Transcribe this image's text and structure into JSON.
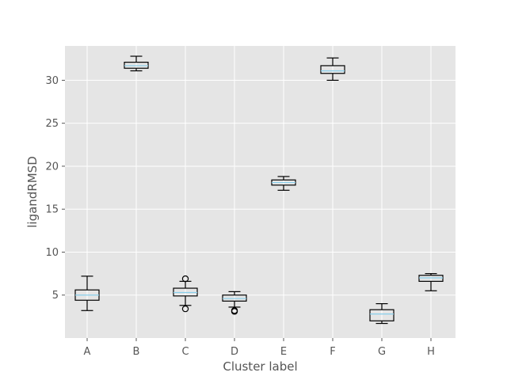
{
  "chart_data": {
    "type": "box",
    "title": "",
    "xlabel": "Cluster label",
    "ylabel": "ligandRMSD",
    "categories": [
      "A",
      "B",
      "C",
      "D",
      "E",
      "F",
      "G",
      "H"
    ],
    "ylim": [
      0,
      34
    ],
    "yticks": [
      5,
      10,
      15,
      20,
      25,
      30
    ],
    "ytick_labels": [
      "5",
      "10",
      "15",
      "20",
      "25",
      "30"
    ],
    "grid": true,
    "colors": {
      "plot_background": "#e5e5e5",
      "grid": "#ffffff",
      "box_edge": "#000000",
      "median": "#87ceeb"
    },
    "boxes": [
      {
        "category": "A",
        "whisker_low": 3.2,
        "q1": 4.4,
        "median": 5.0,
        "q3": 5.6,
        "whisker_high": 7.2,
        "outliers": []
      },
      {
        "category": "B",
        "whisker_low": 31.1,
        "q1": 31.4,
        "median": 31.7,
        "q3": 32.1,
        "whisker_high": 32.8,
        "outliers": []
      },
      {
        "category": "C",
        "whisker_low": 3.8,
        "q1": 4.9,
        "median": 5.3,
        "q3": 5.8,
        "whisker_high": 6.6,
        "outliers": [
          3.4,
          6.9
        ]
      },
      {
        "category": "D",
        "whisker_low": 3.6,
        "q1": 4.3,
        "median": 4.6,
        "q3": 5.0,
        "whisker_high": 5.4,
        "outliers": [
          3.1,
          3.2
        ]
      },
      {
        "category": "E",
        "whisker_low": 17.2,
        "q1": 17.8,
        "median": 18.1,
        "q3": 18.4,
        "whisker_high": 18.8,
        "outliers": []
      },
      {
        "category": "F",
        "whisker_low": 30.0,
        "q1": 30.8,
        "median": 31.1,
        "q3": 31.7,
        "whisker_high": 32.6,
        "outliers": []
      },
      {
        "category": "G",
        "whisker_low": 1.7,
        "q1": 2.0,
        "median": 2.8,
        "q3": 3.3,
        "whisker_high": 4.0,
        "outliers": []
      },
      {
        "category": "H",
        "whisker_low": 5.5,
        "q1": 6.6,
        "median": 7.0,
        "q3": 7.3,
        "whisker_high": 7.5,
        "outliers": []
      }
    ]
  }
}
